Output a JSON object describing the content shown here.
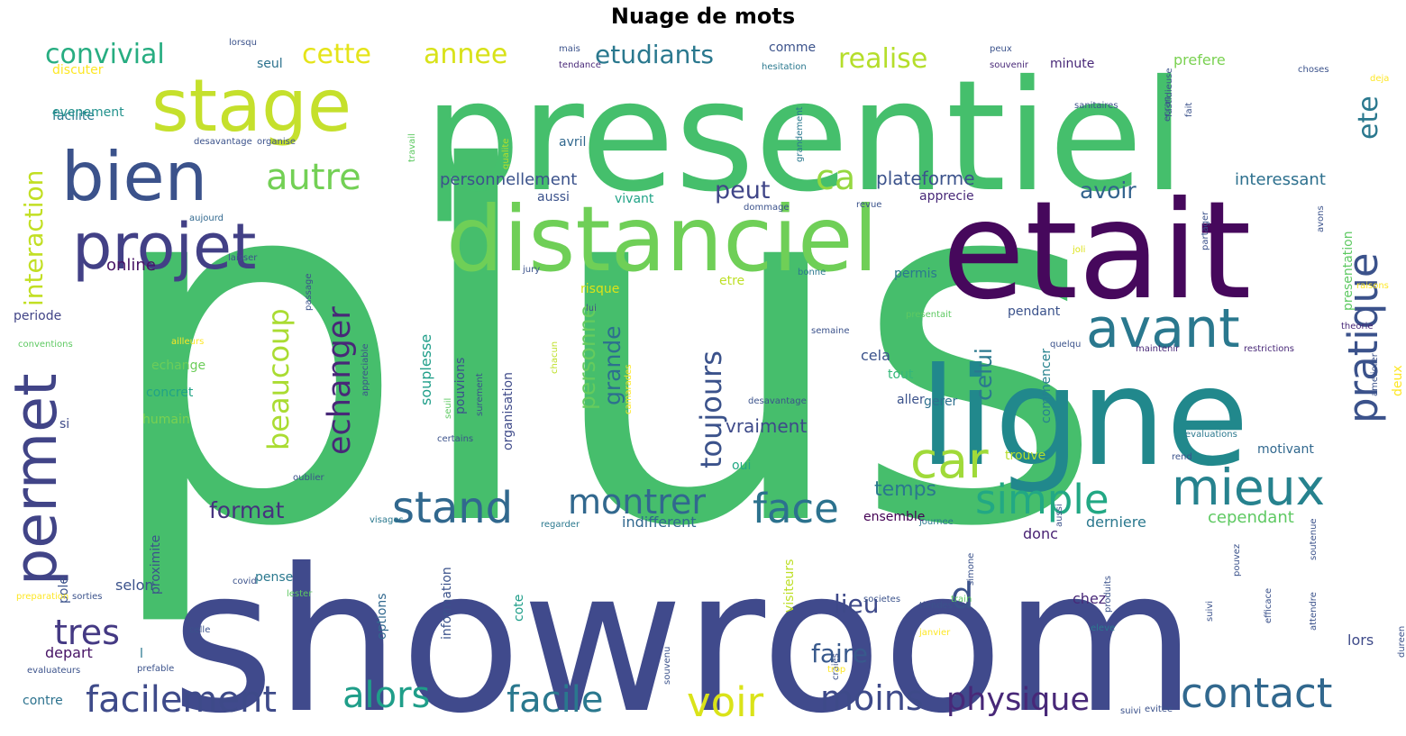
{
  "title": "Nuage de mots",
  "palette": [
    "#440154",
    "#3b528b",
    "#21918c",
    "#5ec962",
    "#fde725"
  ],
  "words": [
    {
      "t": "plus",
      "c": "#46be6c"
    },
    {
      "t": "showroom",
      "c": "#404a8c"
    },
    {
      "t": "presentiel",
      "c": "#45bf6c"
    },
    {
      "t": "etait",
      "c": "#46085c"
    },
    {
      "t": "ligne",
      "c": "#21888c"
    },
    {
      "t": "distanciel",
      "c": "#6fcf57"
    },
    {
      "t": "stage",
      "c": "#c5e02c"
    },
    {
      "t": "bien",
      "c": "#3b528b"
    },
    {
      "t": "projet",
      "c": "#424086"
    },
    {
      "t": "permet",
      "c": "#414487"
    },
    {
      "t": "avant",
      "c": "#2a788e"
    },
    {
      "t": "mieux",
      "c": "#26828e"
    },
    {
      "t": "car",
      "c": "#a0da39"
    },
    {
      "t": "simple",
      "c": "#22a884"
    },
    {
      "t": "pratique",
      "c": "#3b528b"
    },
    {
      "t": "contact",
      "c": "#31688e"
    },
    {
      "t": "voir",
      "c": "#dae319"
    },
    {
      "t": "facile",
      "c": "#2a788e"
    },
    {
      "t": "facilement",
      "c": "#3e4a89"
    },
    {
      "t": "alors",
      "c": "#1f9e89"
    },
    {
      "t": "moins",
      "c": "#3e4a89"
    },
    {
      "t": "physique",
      "c": "#482878"
    },
    {
      "t": "stand",
      "c": "#31688e"
    },
    {
      "t": "montrer",
      "c": "#31688e"
    },
    {
      "t": "face",
      "c": "#2c728e"
    },
    {
      "t": "tres",
      "c": "#443983"
    },
    {
      "t": "toujours",
      "c": "#3b528b"
    },
    {
      "t": "echanger",
      "c": "#482878"
    },
    {
      "t": "beaucoup",
      "c": "#aadc32"
    },
    {
      "t": "autre",
      "c": "#73d055"
    },
    {
      "t": "ca",
      "c": "#95d840"
    },
    {
      "t": "interaction",
      "c": "#c2df23"
    },
    {
      "t": "convivial",
      "c": "#27ad81"
    },
    {
      "t": "cette",
      "c": "#e5e419"
    },
    {
      "t": "annee",
      "c": "#d8e219"
    },
    {
      "t": "etudiants",
      "c": "#2a788e"
    },
    {
      "t": "realise",
      "c": "#b5de2b"
    },
    {
      "t": "ete",
      "c": "#2a788e"
    },
    {
      "t": "personne",
      "c": "#65cb5e"
    },
    {
      "t": "grande",
      "c": "#2d708e"
    },
    {
      "t": "celui",
      "c": "#2a788e"
    },
    {
      "t": "faire",
      "c": "#38598c"
    },
    {
      "t": "lieu",
      "c": "#3e4989"
    },
    {
      "t": "format",
      "c": "#46327e"
    },
    {
      "t": "d",
      "c": "#3b528b"
    },
    {
      "t": "peut",
      "c": "#404688"
    },
    {
      "t": "avoir",
      "c": "#33638d"
    },
    {
      "t": "plateforme",
      "c": "#3b528b"
    },
    {
      "t": "interessant",
      "c": "#2d708e"
    },
    {
      "t": "personnellement",
      "c": "#3b528b"
    },
    {
      "t": "temps",
      "c": "#2a788e"
    },
    {
      "t": "vraiment",
      "c": "#3e4a89"
    },
    {
      "t": "cependant",
      "c": "#5ec962"
    },
    {
      "t": "derniere",
      "c": "#2a788e"
    },
    {
      "t": "indifferent",
      "c": "#31688e"
    },
    {
      "t": "online",
      "c": "#471365"
    },
    {
      "t": "souplesse",
      "c": "#1f9e89"
    },
    {
      "t": "organisation",
      "c": "#3e4a89"
    },
    {
      "t": "pouvions",
      "c": "#3b528b"
    },
    {
      "t": "echange",
      "c": "#6ccd5a"
    },
    {
      "t": "concret",
      "c": "#20a386"
    },
    {
      "t": "humain",
      "c": "#7ad151"
    },
    {
      "t": "periode",
      "c": "#414487"
    },
    {
      "t": "selon",
      "c": "#3b528b"
    },
    {
      "t": "depart",
      "c": "#471365"
    },
    {
      "t": "contre",
      "c": "#2c728e"
    },
    {
      "t": "tout",
      "c": "#35b779"
    },
    {
      "t": "cela",
      "c": "#3b528b"
    },
    {
      "t": "commencer",
      "c": "#26828e"
    },
    {
      "t": "pendant",
      "c": "#3b528b"
    },
    {
      "t": "trouve",
      "c": "#b5de2b"
    },
    {
      "t": "motivant",
      "c": "#31688e"
    },
    {
      "t": "gerer",
      "c": "#2d708e"
    },
    {
      "t": "ensemble",
      "c": "#440154"
    },
    {
      "t": "donc",
      "c": "#482173"
    },
    {
      "t": "chez",
      "c": "#482878"
    },
    {
      "t": "lors",
      "c": "#3e4a89"
    },
    {
      "t": "presentation",
      "c": "#5ec962"
    },
    {
      "t": "prefere",
      "c": "#7ad151"
    },
    {
      "t": "minute",
      "c": "#482878"
    },
    {
      "t": "avril",
      "c": "#31688e"
    },
    {
      "t": "aussi",
      "c": "#3b528b"
    },
    {
      "t": "vivant",
      "c": "#20a386"
    },
    {
      "t": "apprecie",
      "c": "#482878"
    },
    {
      "t": "permis",
      "c": "#2a788e"
    },
    {
      "t": "risque",
      "c": "#dde318"
    },
    {
      "t": "etre",
      "c": "#bddf26"
    },
    {
      "t": "information",
      "c": "#3b528b"
    },
    {
      "t": "options",
      "c": "#31688e"
    },
    {
      "t": "proximite",
      "c": "#3b528b"
    },
    {
      "t": "visiteurs",
      "c": "#bddf26"
    },
    {
      "t": "cote",
      "c": "#1f9e89"
    },
    {
      "t": "pense",
      "c": "#2a788e"
    },
    {
      "t": "discuter",
      "c": "#fde725"
    },
    {
      "t": "facilite",
      "c": "#2a788e"
    },
    {
      "t": "evenement",
      "c": "#21918c"
    },
    {
      "t": "seul",
      "c": "#2c728e"
    },
    {
      "t": "comme",
      "c": "#3b528b"
    },
    {
      "t": "si",
      "c": "#3e4a89"
    },
    {
      "t": "l",
      "c": "#2a788e"
    },
    {
      "t": "pole",
      "c": "#3b528b"
    },
    {
      "t": "oui",
      "c": "#22a884"
    },
    {
      "t": "deux",
      "c": "#fde725"
    },
    {
      "t": "aller",
      "c": "#3b528b"
    },
    {
      "t": "tendance",
      "c": "#482878"
    },
    {
      "t": "hesitation",
      "c": "#2a788e"
    },
    {
      "t": "souvenir",
      "c": "#482878"
    },
    {
      "t": "choses",
      "c": "#3b528b"
    },
    {
      "t": "deja",
      "c": "#fde725"
    },
    {
      "t": "lorsqu",
      "c": "#3b528b"
    },
    {
      "t": "mais",
      "c": "#3b528b"
    },
    {
      "t": "peux",
      "c": "#3b528b"
    },
    {
      "t": "desavantage",
      "c": "#3b528b"
    },
    {
      "t": "organise",
      "c": "#3b528b"
    },
    {
      "t": "qualite",
      "c": "#b5de2b"
    },
    {
      "t": "chacun",
      "c": "#bddf26"
    },
    {
      "t": "travail",
      "c": "#5ec962"
    },
    {
      "t": "sanitaires",
      "c": "#3b528b"
    },
    {
      "t": "fait",
      "c": "#3b528b"
    },
    {
      "t": "ecran",
      "c": "#3b528b"
    },
    {
      "t": "fastidieuse",
      "c": "#3b528b"
    },
    {
      "t": "grandement",
      "c": "#2a788e"
    },
    {
      "t": "aujourd",
      "c": "#31688e"
    },
    {
      "t": "dommage",
      "c": "#3b528b"
    },
    {
      "t": "revue",
      "c": "#3b528b"
    },
    {
      "t": "joli",
      "c": "#dde318"
    },
    {
      "t": "partager",
      "c": "#3b528b"
    },
    {
      "t": "avons",
      "c": "#3b528b"
    },
    {
      "t": "raisons",
      "c": "#fde725"
    },
    {
      "t": "laisser",
      "c": "#3b528b"
    },
    {
      "t": "jury",
      "c": "#3b528b"
    },
    {
      "t": "bonne",
      "c": "#2a788e"
    },
    {
      "t": "presentait",
      "c": "#5ec962"
    },
    {
      "t": "theorie",
      "c": "#482878"
    },
    {
      "t": "quelqu",
      "c": "#3b528b"
    },
    {
      "t": "maintenir",
      "c": "#482878"
    },
    {
      "t": "restrictions",
      "c": "#482878"
    },
    {
      "t": "ameliorer",
      "c": "#3b528b"
    },
    {
      "t": "conventions",
      "c": "#5ec962"
    },
    {
      "t": "ailleurs",
      "c": "#fde725"
    },
    {
      "t": "passage",
      "c": "#3b528b"
    },
    {
      "t": "appreciable",
      "c": "#3b528b"
    },
    {
      "t": "semaine",
      "c": "#3b528b"
    },
    {
      "t": "lui",
      "c": "#3b528b"
    },
    {
      "t": "seuil",
      "c": "#5ec962"
    },
    {
      "t": "surement",
      "c": "#3b528b"
    },
    {
      "t": "desavantage",
      "c": "#3b528b"
    },
    {
      "t": "camarades",
      "c": "#fde725"
    },
    {
      "t": "certains",
      "c": "#3b528b"
    },
    {
      "t": "regarder",
      "c": "#2a788e"
    },
    {
      "t": "evaluations",
      "c": "#2a788e"
    },
    {
      "t": "oublier",
      "c": "#3b528b"
    },
    {
      "t": "rend",
      "c": "#3b528b"
    },
    {
      "t": "visages",
      "c": "#2a788e"
    },
    {
      "t": "journee",
      "c": "#2a788e"
    },
    {
      "t": "aussi",
      "c": "#3b528b"
    },
    {
      "t": "soutenue",
      "c": "#3b528b"
    },
    {
      "t": "pouvez",
      "c": "#3b528b"
    },
    {
      "t": "covid",
      "c": "#3b528b"
    },
    {
      "t": "craies",
      "c": "#3b528b"
    },
    {
      "t": "evitee",
      "c": "#3b528b"
    },
    {
      "t": "efficace",
      "c": "#3b528b"
    },
    {
      "t": "simone",
      "c": "#3b528b"
    },
    {
      "t": "tiendes",
      "c": "#3b528b"
    },
    {
      "t": "produits",
      "c": "#3b528b"
    },
    {
      "t": "janvier",
      "c": "#fde725"
    },
    {
      "t": "train",
      "c": "#5ec962"
    },
    {
      "t": "eleve",
      "c": "#2a788e"
    },
    {
      "t": "attendre",
      "c": "#3b528b"
    },
    {
      "t": "societes",
      "c": "#3b528b"
    },
    {
      "t": "celle",
      "c": "#3b528b"
    },
    {
      "t": "lester",
      "c": "#5ec962"
    },
    {
      "t": "sorties",
      "c": "#3b528b"
    },
    {
      "t": "preparation",
      "c": "#fde725"
    },
    {
      "t": "evaluateurs",
      "c": "#3b528b"
    },
    {
      "t": "prefable",
      "c": "#3b528b"
    },
    {
      "t": "trop",
      "c": "#fde725"
    },
    {
      "t": "souvenu",
      "c": "#3b528b"
    },
    {
      "t": "suivi",
      "c": "#3b528b"
    },
    {
      "t": "suivi",
      "c": "#3b528b"
    },
    {
      "t": "dureen",
      "c": "#3b528b"
    }
  ]
}
